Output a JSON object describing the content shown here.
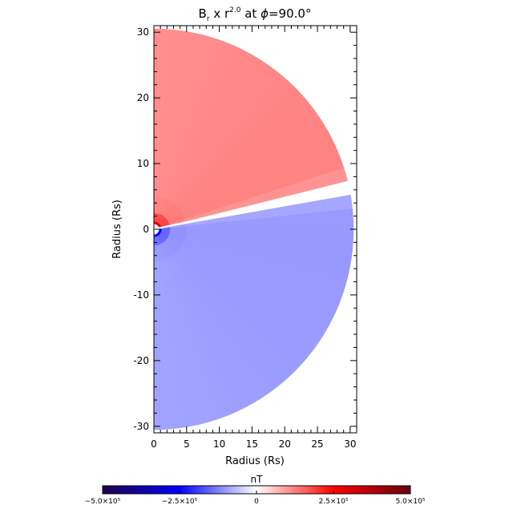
{
  "chart_data": {
    "type": "heatmap",
    "title": {
      "base": "B",
      "subscript": "r",
      "mid": " x r",
      "exponent": "2.0",
      "tail": " at ",
      "symbol": "ϕ",
      "value": "=90.0°"
    },
    "xlabel": "Radius (Rs)",
    "ylabel": "Radius (Rs)",
    "xlim": [
      0,
      31
    ],
    "ylim": [
      -31,
      31
    ],
    "x_ticks": [
      0,
      5,
      10,
      15,
      20,
      25,
      30
    ],
    "y_ticks": [
      -30,
      -20,
      -10,
      0,
      10,
      20,
      30
    ],
    "x_minor_step": 1,
    "y_minor_step": 2,
    "domain": {
      "shape": "half-disk",
      "r_inner": 0.5,
      "r_outer": 30.5,
      "current_sheet_angle_deg": 12,
      "field_sign_above_sheet": "positive",
      "field_sign_below_sheet": "negative",
      "typical_value_north": 110000,
      "typical_value_south": -90000,
      "peak_value_near_origin": 500000
    },
    "colorbar": {
      "label": "nT",
      "range": [
        -500000,
        500000
      ],
      "ticks": [
        "−5.0×10⁵",
        "−2.5×10⁵",
        "0",
        "2.5×10⁵",
        "5.0×10⁵"
      ],
      "colors": [
        "#20004a",
        "#0000ff",
        "#ffffff",
        "#ff0000",
        "#6a0010"
      ]
    }
  }
}
